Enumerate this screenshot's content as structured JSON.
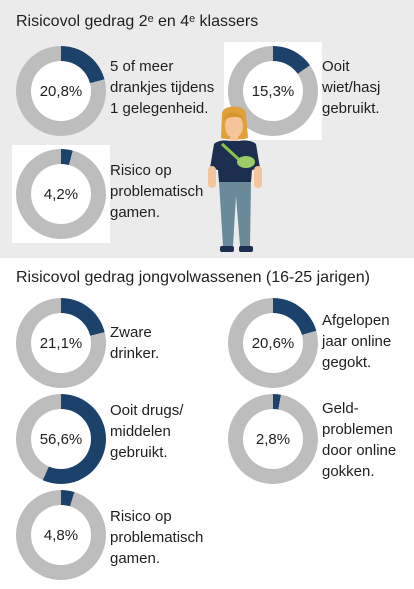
{
  "section_top": {
    "title": "Risicovol gedrag 2ᵉ en 4ᵉ klassers",
    "items": [
      {
        "value": "20,8%",
        "percent": 20.8,
        "lines": [
          "5 of meer",
          "drankjes tijdens",
          "1 gelegenheid."
        ]
      },
      {
        "value": "15,3%",
        "percent": 15.3,
        "lines": [
          "Ooit",
          "wiet/hasj",
          "gebruikt."
        ]
      },
      {
        "value": "4,2%",
        "percent": 4.2,
        "lines": [
          "Risico op",
          "problematisch",
          "gamen."
        ]
      }
    ]
  },
  "section_bottom": {
    "title": "Risicovol gedrag jongvolwassenen (16-25 jarigen)",
    "items": [
      {
        "value": "21,1%",
        "percent": 21.1,
        "lines": [
          "Zware",
          "drinker."
        ]
      },
      {
        "value": "20,6%",
        "percent": 20.6,
        "lines": [
          "Afgelopen",
          "jaar online",
          "gegokt."
        ]
      },
      {
        "value": "56,6%",
        "percent": 56.6,
        "lines": [
          "Ooit drugs/",
          "middelen",
          "gebruikt."
        ]
      },
      {
        "value": "2,8%",
        "percent": 2.8,
        "lines": [
          "Geld-",
          "problemen",
          "door online",
          "gokken."
        ]
      },
      {
        "value": "4,8%",
        "percent": 4.8,
        "lines": [
          "Risico op",
          "problematisch",
          "gamen."
        ]
      }
    ]
  },
  "colors": {
    "filled": "#1c416b",
    "remaining": "#bdbdbd",
    "panel": "#ebebeb"
  },
  "icons": [
    "person-illustration"
  ]
}
